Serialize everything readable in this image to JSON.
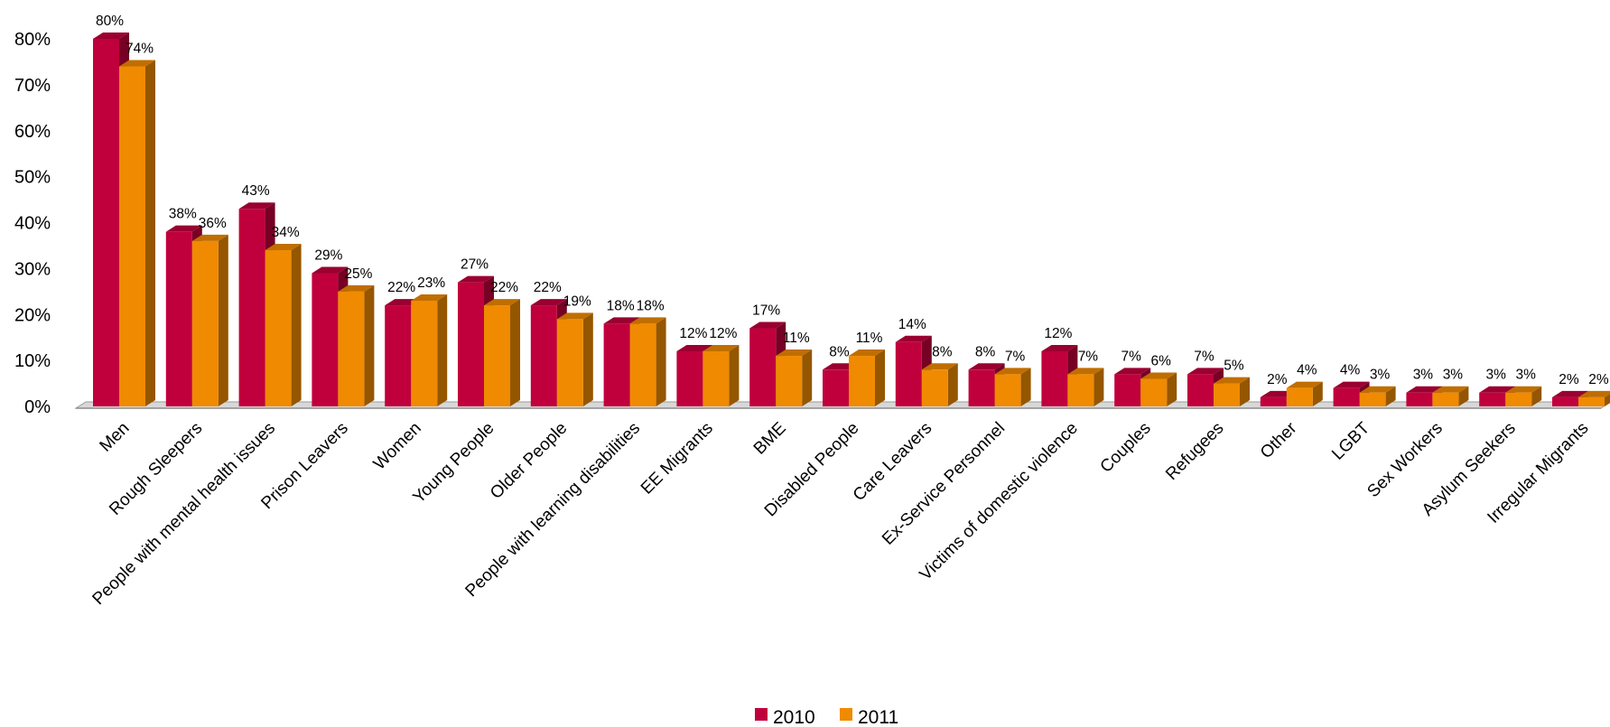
{
  "chart_data": {
    "type": "bar",
    "style": "3d-clustered-column",
    "categories": [
      "Men",
      "Rough Sleepers",
      "People with mental health issues",
      "Prison Leavers",
      "Women",
      "Young People",
      "Older People",
      "People with learning disabilities",
      "EE Migrants",
      "BME",
      "Disabled People",
      "Care Leavers",
      "Ex-Service Personnel",
      "Victims of domestic violence",
      "Couples",
      "Refugees",
      "Other",
      "LGBT",
      "Sex Workers",
      "Asylum Seekers",
      "Irregular Migrants"
    ],
    "series": [
      {
        "name": "2010",
        "color": "#C0003C",
        "values": [
          80,
          38,
          43,
          29,
          22,
          27,
          22,
          18,
          12,
          17,
          8,
          14,
          8,
          12,
          7,
          7,
          2,
          4,
          3,
          3,
          2
        ],
        "labels": [
          "80%",
          "38%",
          "43%",
          "29%",
          "22%",
          "27%",
          "22%",
          "18%",
          "12%",
          "17%",
          "8%",
          "14%",
          "8%",
          "12%",
          "7%",
          "7%",
          "2%",
          "4%",
          "3%",
          "3%",
          "2%"
        ]
      },
      {
        "name": "2011",
        "color": "#F08A00",
        "values": [
          74,
          36,
          34,
          25,
          23,
          22,
          19,
          18,
          12,
          11,
          11,
          8,
          7,
          7,
          6,
          5,
          4,
          3,
          3,
          3,
          2
        ],
        "labels": [
          "74%",
          "36%",
          "34%",
          "25%",
          "23%",
          "22%",
          "19%",
          "18%",
          "12%",
          "11%",
          "11%",
          "8%",
          "7%",
          "7%",
          "6%",
          "5%",
          "4%",
          "3%",
          "3%",
          "3%",
          "2%"
        ]
      }
    ],
    "ylim": [
      0,
      80
    ],
    "yticks": [
      0,
      10,
      20,
      30,
      40,
      50,
      60,
      70,
      80
    ],
    "ytick_labels": [
      "0%",
      "10%",
      "20%",
      "30%",
      "40%",
      "50%",
      "60%",
      "70%",
      "80%"
    ],
    "title": "",
    "xlabel": "",
    "ylabel": "",
    "grid": false,
    "legend_position": "bottom-center",
    "floor_color": "#D8D8D8"
  }
}
